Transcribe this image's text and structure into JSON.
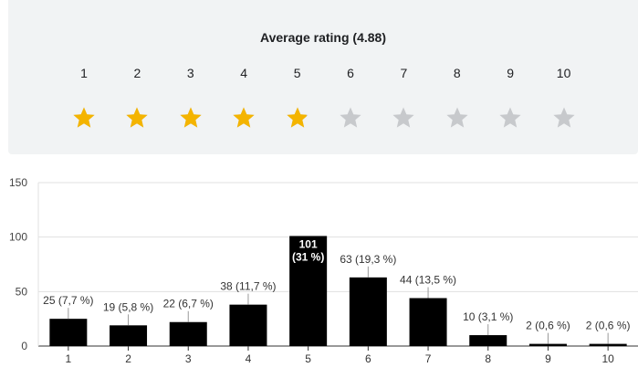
{
  "rating": {
    "title": "Average rating (4.88)",
    "scale": [
      "1",
      "2",
      "3",
      "4",
      "5",
      "6",
      "7",
      "8",
      "9",
      "10"
    ],
    "average": 4.88,
    "filled_color": "#f4b400",
    "empty_color": "#c7c9cc"
  },
  "chart_data": {
    "type": "bar",
    "categories": [
      "1",
      "2",
      "3",
      "4",
      "5",
      "6",
      "7",
      "8",
      "9",
      "10"
    ],
    "values": [
      25,
      19,
      22,
      38,
      101,
      63,
      44,
      10,
      2,
      2
    ],
    "data_labels": [
      "25 (7,7 %)",
      "19 (5,8 %)",
      "22 (6,7 %)",
      "38 (11,7 %)",
      "101 (31 %)",
      "63 (19,3 %)",
      "44 (13,5 %)",
      "10 (3,1 %)",
      "2 (0,6 %)",
      "2 (0,6 %)"
    ],
    "y_ticks": [
      "0",
      "50",
      "100",
      "150"
    ],
    "ylim": [
      0,
      150
    ],
    "bar_color": "#000000",
    "grid": true,
    "title": "",
    "xlabel": "",
    "ylabel": ""
  }
}
